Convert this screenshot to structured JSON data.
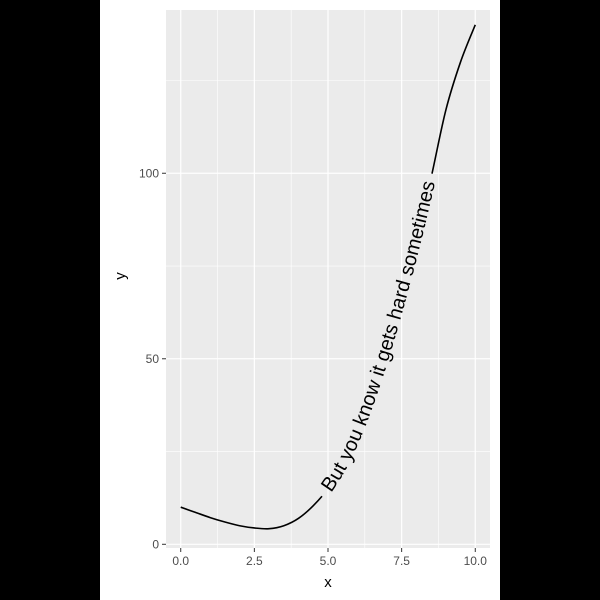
{
  "chart_data": {
    "type": "line",
    "title": "",
    "xlabel": "x",
    "ylabel": "y",
    "xlim": [
      -0.5,
      10.5
    ],
    "ylim": [
      -1,
      144
    ],
    "x_ticks": [
      0,
      2.5,
      5,
      7.5,
      10
    ],
    "x_tick_labels": [
      "0.0",
      "2.5",
      "5.0",
      "7.5",
      "10.0"
    ],
    "y_ticks": [
      0,
      50,
      100
    ],
    "y_tick_labels": [
      "0",
      "50",
      "100"
    ],
    "grid": true,
    "legend": "none",
    "series": [
      {
        "x": [
          0,
          0.5,
          1,
          1.5,
          2,
          2.5,
          3,
          3.5,
          4,
          4.5,
          5,
          5.5,
          6,
          6.5,
          7,
          7.5,
          8,
          8.5,
          9,
          9.5,
          10
        ],
        "y": [
          10,
          8.6,
          7.2,
          6,
          5,
          4.4,
          4.2,
          5,
          7,
          10.4,
          15,
          21.4,
          30,
          40.6,
          53,
          66.9,
          82,
          98.8,
          117,
          130,
          140
        ]
      }
    ],
    "annotation": {
      "text": "But you know it gets hard sometimes",
      "placement": "along curve"
    }
  },
  "colors": {
    "panel_background": "#ebebeb",
    "grid_major": "#ffffff",
    "line": "#000000",
    "axis_text": "#4d4d4d",
    "title_text": "#000000",
    "outer_background": "#000000",
    "plot_background": "#ffffff"
  }
}
